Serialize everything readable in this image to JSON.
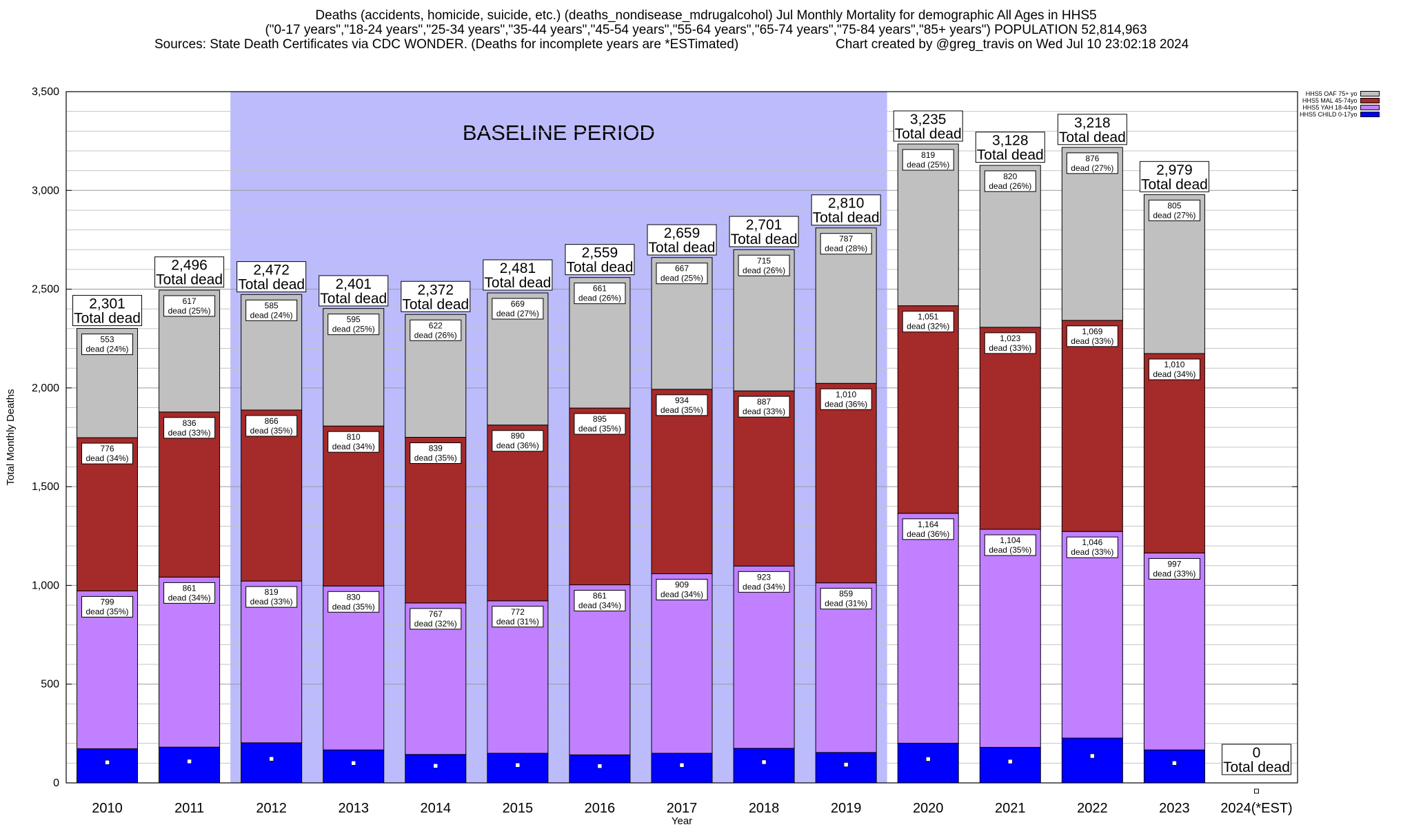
{
  "chart_data": {
    "type": "bar",
    "stacked": true,
    "title_lines": [
      "Deaths (accidents, homicide, suicide, etc.) (deaths_nondisease_mdrugalcohol) Jul Monthly Mortality for demographic All Ages in HHS5",
      "(\"0-17 years\",\"18-24 years\",\"25-34 years\",\"35-44 years\",\"45-54 years\",\"55-64 years\",\"65-74 years\",\"75-84 years\",\"85+ years\") POPULATION 52,814,963"
    ],
    "sources_text": "Sources: State Death Certificates via CDC WONDER. (Deaths for incomplete years are *ESTimated)",
    "created_text": "Chart created by @greg_travis on Wed Jul 10 23:02:18 2024",
    "xlabel": "Year",
    "ylabel": "Total Monthly Deaths",
    "ylim": [
      0,
      3500
    ],
    "y_ticks": [
      0,
      500,
      1000,
      1500,
      2000,
      2500,
      3000,
      3500
    ],
    "y_tick_labels": [
      "0",
      "500",
      "1,000",
      "1,500",
      "2,000",
      "2,500",
      "3,000",
      "3,500"
    ],
    "grid": "horizontal",
    "legend_position": "top-right",
    "baseline_label": "BASELINE PERIOD",
    "baseline_range": [
      "2012",
      "2019"
    ],
    "baseline_color": "#bcbcfc",
    "total_suffix": "Total dead",
    "categories": [
      "2010",
      "2011",
      "2012",
      "2013",
      "2014",
      "2015",
      "2016",
      "2017",
      "2018",
      "2019",
      "2020",
      "2021",
      "2022",
      "2023",
      "2024(*EST)"
    ],
    "totals": [
      2301,
      2496,
      2472,
      2401,
      2372,
      2481,
      2559,
      2659,
      2701,
      2810,
      3235,
      3128,
      3218,
      2979,
      0
    ],
    "total_labels": [
      "2,301",
      "2,496",
      "2,472",
      "2,401",
      "2,372",
      "2,481",
      "2,559",
      "2,659",
      "2,701",
      "2,810",
      "3,235",
      "3,128",
      "3,218",
      "2,979",
      "0"
    ],
    "series": [
      {
        "name": "HHS5 CHILD 0-17yo",
        "color": "#0000ff",
        "values": [
          173,
          181,
          203,
          167,
          144,
          150,
          142,
          150,
          175,
          154,
          201,
          180,
          227,
          167,
          0
        ]
      },
      {
        "name": "HHS5 YAH 18-44yo",
        "color": "#c080ff",
        "values": [
          799,
          861,
          819,
          830,
          767,
          772,
          861,
          909,
          923,
          859,
          1164,
          1104,
          1046,
          997,
          0
        ],
        "labels": [
          "799",
          "861",
          "819",
          "830",
          "767",
          "772",
          "861",
          "909",
          "923",
          "859",
          "1,164",
          "1,104",
          "1,046",
          "997",
          ""
        ],
        "pcts": [
          "35%",
          "34%",
          "33%",
          "35%",
          "32%",
          "31%",
          "34%",
          "34%",
          "34%",
          "31%",
          "36%",
          "35%",
          "33%",
          "33%",
          ""
        ]
      },
      {
        "name": "HHS5 MAL 45-74yo",
        "color": "#a52a2a",
        "values": [
          776,
          836,
          866,
          810,
          839,
          890,
          895,
          934,
          887,
          1010,
          1051,
          1023,
          1069,
          1010,
          0
        ],
        "labels": [
          "776",
          "836",
          "866",
          "810",
          "839",
          "890",
          "895",
          "934",
          "887",
          "1,010",
          "1,051",
          "1,023",
          "1,069",
          "1,010",
          ""
        ],
        "pcts": [
          "34%",
          "33%",
          "35%",
          "34%",
          "35%",
          "36%",
          "35%",
          "35%",
          "33%",
          "36%",
          "32%",
          "33%",
          "33%",
          "34%",
          ""
        ]
      },
      {
        "name": "HHS5 OAF 75+ yo",
        "color": "#c0c0c0",
        "values": [
          553,
          617,
          585,
          595,
          622,
          669,
          661,
          667,
          715,
          787,
          819,
          820,
          876,
          805,
          0
        ],
        "labels": [
          "553",
          "617",
          "585",
          "595",
          "622",
          "669",
          "661",
          "667",
          "715",
          "787",
          "819",
          "820",
          "876",
          "805",
          ""
        ],
        "pcts": [
          "24%",
          "25%",
          "24%",
          "25%",
          "26%",
          "27%",
          "26%",
          "25%",
          "26%",
          "28%",
          "25%",
          "26%",
          "27%",
          "27%",
          ""
        ]
      }
    ]
  }
}
